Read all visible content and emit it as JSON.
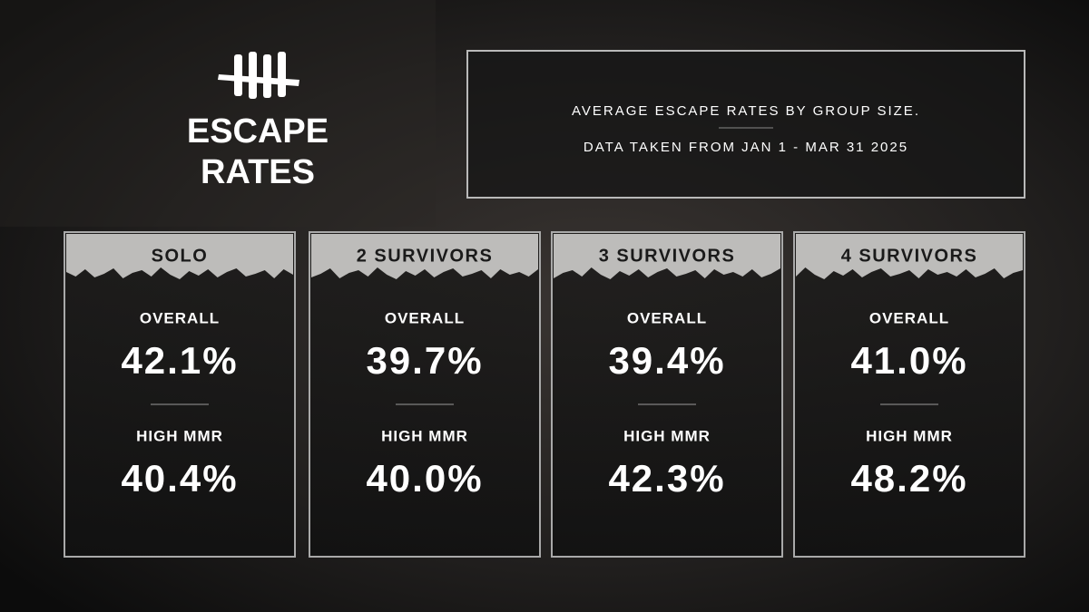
{
  "header": {
    "title_lines": [
      "ESCAPE",
      "RATES"
    ]
  },
  "info": {
    "lines": [
      "AVERAGE ESCAPE RATES BY GROUP SIZE.",
      "DATA TAKEN FROM JAN 1 - MAR 31 2025"
    ]
  },
  "cards": [
    {
      "title": "SOLO",
      "overall_label": "OVERALL",
      "overall": "42.1%",
      "high_label": "HIGH MMR",
      "high": "40.4%"
    },
    {
      "title": "2 SURVIVORS",
      "overall_label": "OVERALL",
      "overall": "39.7%",
      "high_label": "HIGH MMR",
      "high": "40.0%"
    },
    {
      "title": "3 SURVIVORS",
      "overall_label": "OVERALL",
      "overall": "39.4%",
      "high_label": "HIGH MMR",
      "high": "42.3%"
    },
    {
      "title": "4 SURVIVORS",
      "overall_label": "OVERALL",
      "overall": "41.0%",
      "high_label": "HIGH MMR",
      "high": "48.2%"
    }
  ]
}
